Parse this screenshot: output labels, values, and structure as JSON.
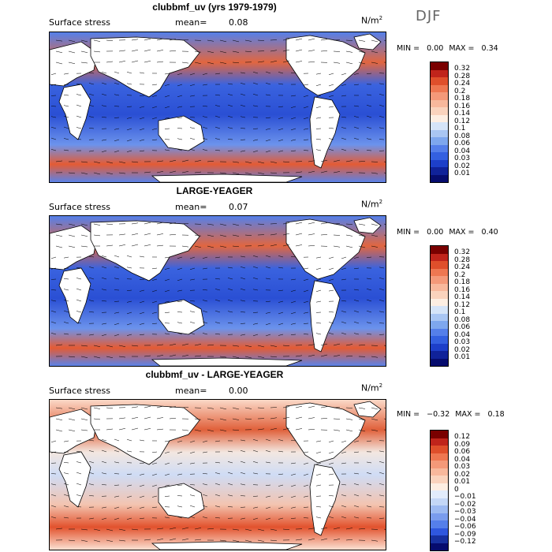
{
  "season": "DJF",
  "panels": [
    {
      "title": "clubbmf_uv (yrs 1979-1979)",
      "field": "Surface stress",
      "mean_label": "mean=",
      "mean_value": "0.08",
      "units": "N/m",
      "units_exp": "2",
      "min_label": "MIN =",
      "min_value": "0.00",
      "max_label": "MAX =",
      "max_value": "0.34",
      "colorbar_labels": [
        "0.32",
        "0.28",
        "0.24",
        "0.2",
        "0.18",
        "0.16",
        "0.14",
        "0.12",
        "0.1",
        "0.08",
        "0.06",
        "0.04",
        "0.03",
        "0.02",
        "0.01"
      ],
      "colorbar_colors": [
        "#7a0000",
        "#c0241b",
        "#df4f2b",
        "#ee7751",
        "#f49979",
        "#f8b89c",
        "#fad3bd",
        "#fdeee2",
        "#d5e4f8",
        "#a9c6f3",
        "#7ea7ee",
        "#557fea",
        "#3460e0",
        "#1d3fc9",
        "#102299",
        "#060c6e"
      ],
      "map_style": "positive"
    },
    {
      "title": "LARGE-YEAGER",
      "field": "Surface stress",
      "mean_label": "mean=",
      "mean_value": "0.07",
      "units": "N/m",
      "units_exp": "2",
      "min_label": "MIN =",
      "min_value": "0.00",
      "max_label": "MAX =",
      "max_value": "0.40",
      "colorbar_labels": [
        "0.32",
        "0.28",
        "0.24",
        "0.2",
        "0.18",
        "0.16",
        "0.14",
        "0.12",
        "0.1",
        "0.08",
        "0.06",
        "0.04",
        "0.03",
        "0.02",
        "0.01"
      ],
      "colorbar_colors": [
        "#7a0000",
        "#c0241b",
        "#df4f2b",
        "#ee7751",
        "#f49979",
        "#f8b89c",
        "#fad3bd",
        "#fdeee2",
        "#d5e4f8",
        "#a9c6f3",
        "#7ea7ee",
        "#557fea",
        "#3460e0",
        "#1d3fc9",
        "#102299",
        "#060c6e"
      ],
      "map_style": "positive"
    },
    {
      "title": "clubbmf_uv - LARGE-YEAGER",
      "field": "Surface stress",
      "mean_label": "mean=",
      "mean_value": "0.00",
      "units": "N/m",
      "units_exp": "2",
      "min_label": "MIN =",
      "min_value": "−0.32",
      "max_label": "MAX =",
      "max_value": "0.18",
      "colorbar_labels": [
        "0.12",
        "0.09",
        "0.06",
        "0.04",
        "0.03",
        "0.02",
        "0.01",
        "0",
        "−0.01",
        "−0.02",
        "−0.03",
        "−0.04",
        "−0.06",
        "−0.09",
        "−0.12"
      ],
      "colorbar_colors": [
        "#7a0000",
        "#c0241b",
        "#df4f2b",
        "#ee7751",
        "#f49979",
        "#f8b89c",
        "#fad3bd",
        "#fdeee2",
        "#e2ecfb",
        "#c4d7f6",
        "#9dbaf1",
        "#7a9ced",
        "#557fea",
        "#2f57de",
        "#17309f",
        "#060c6e"
      ],
      "map_style": "difference"
    }
  ]
}
